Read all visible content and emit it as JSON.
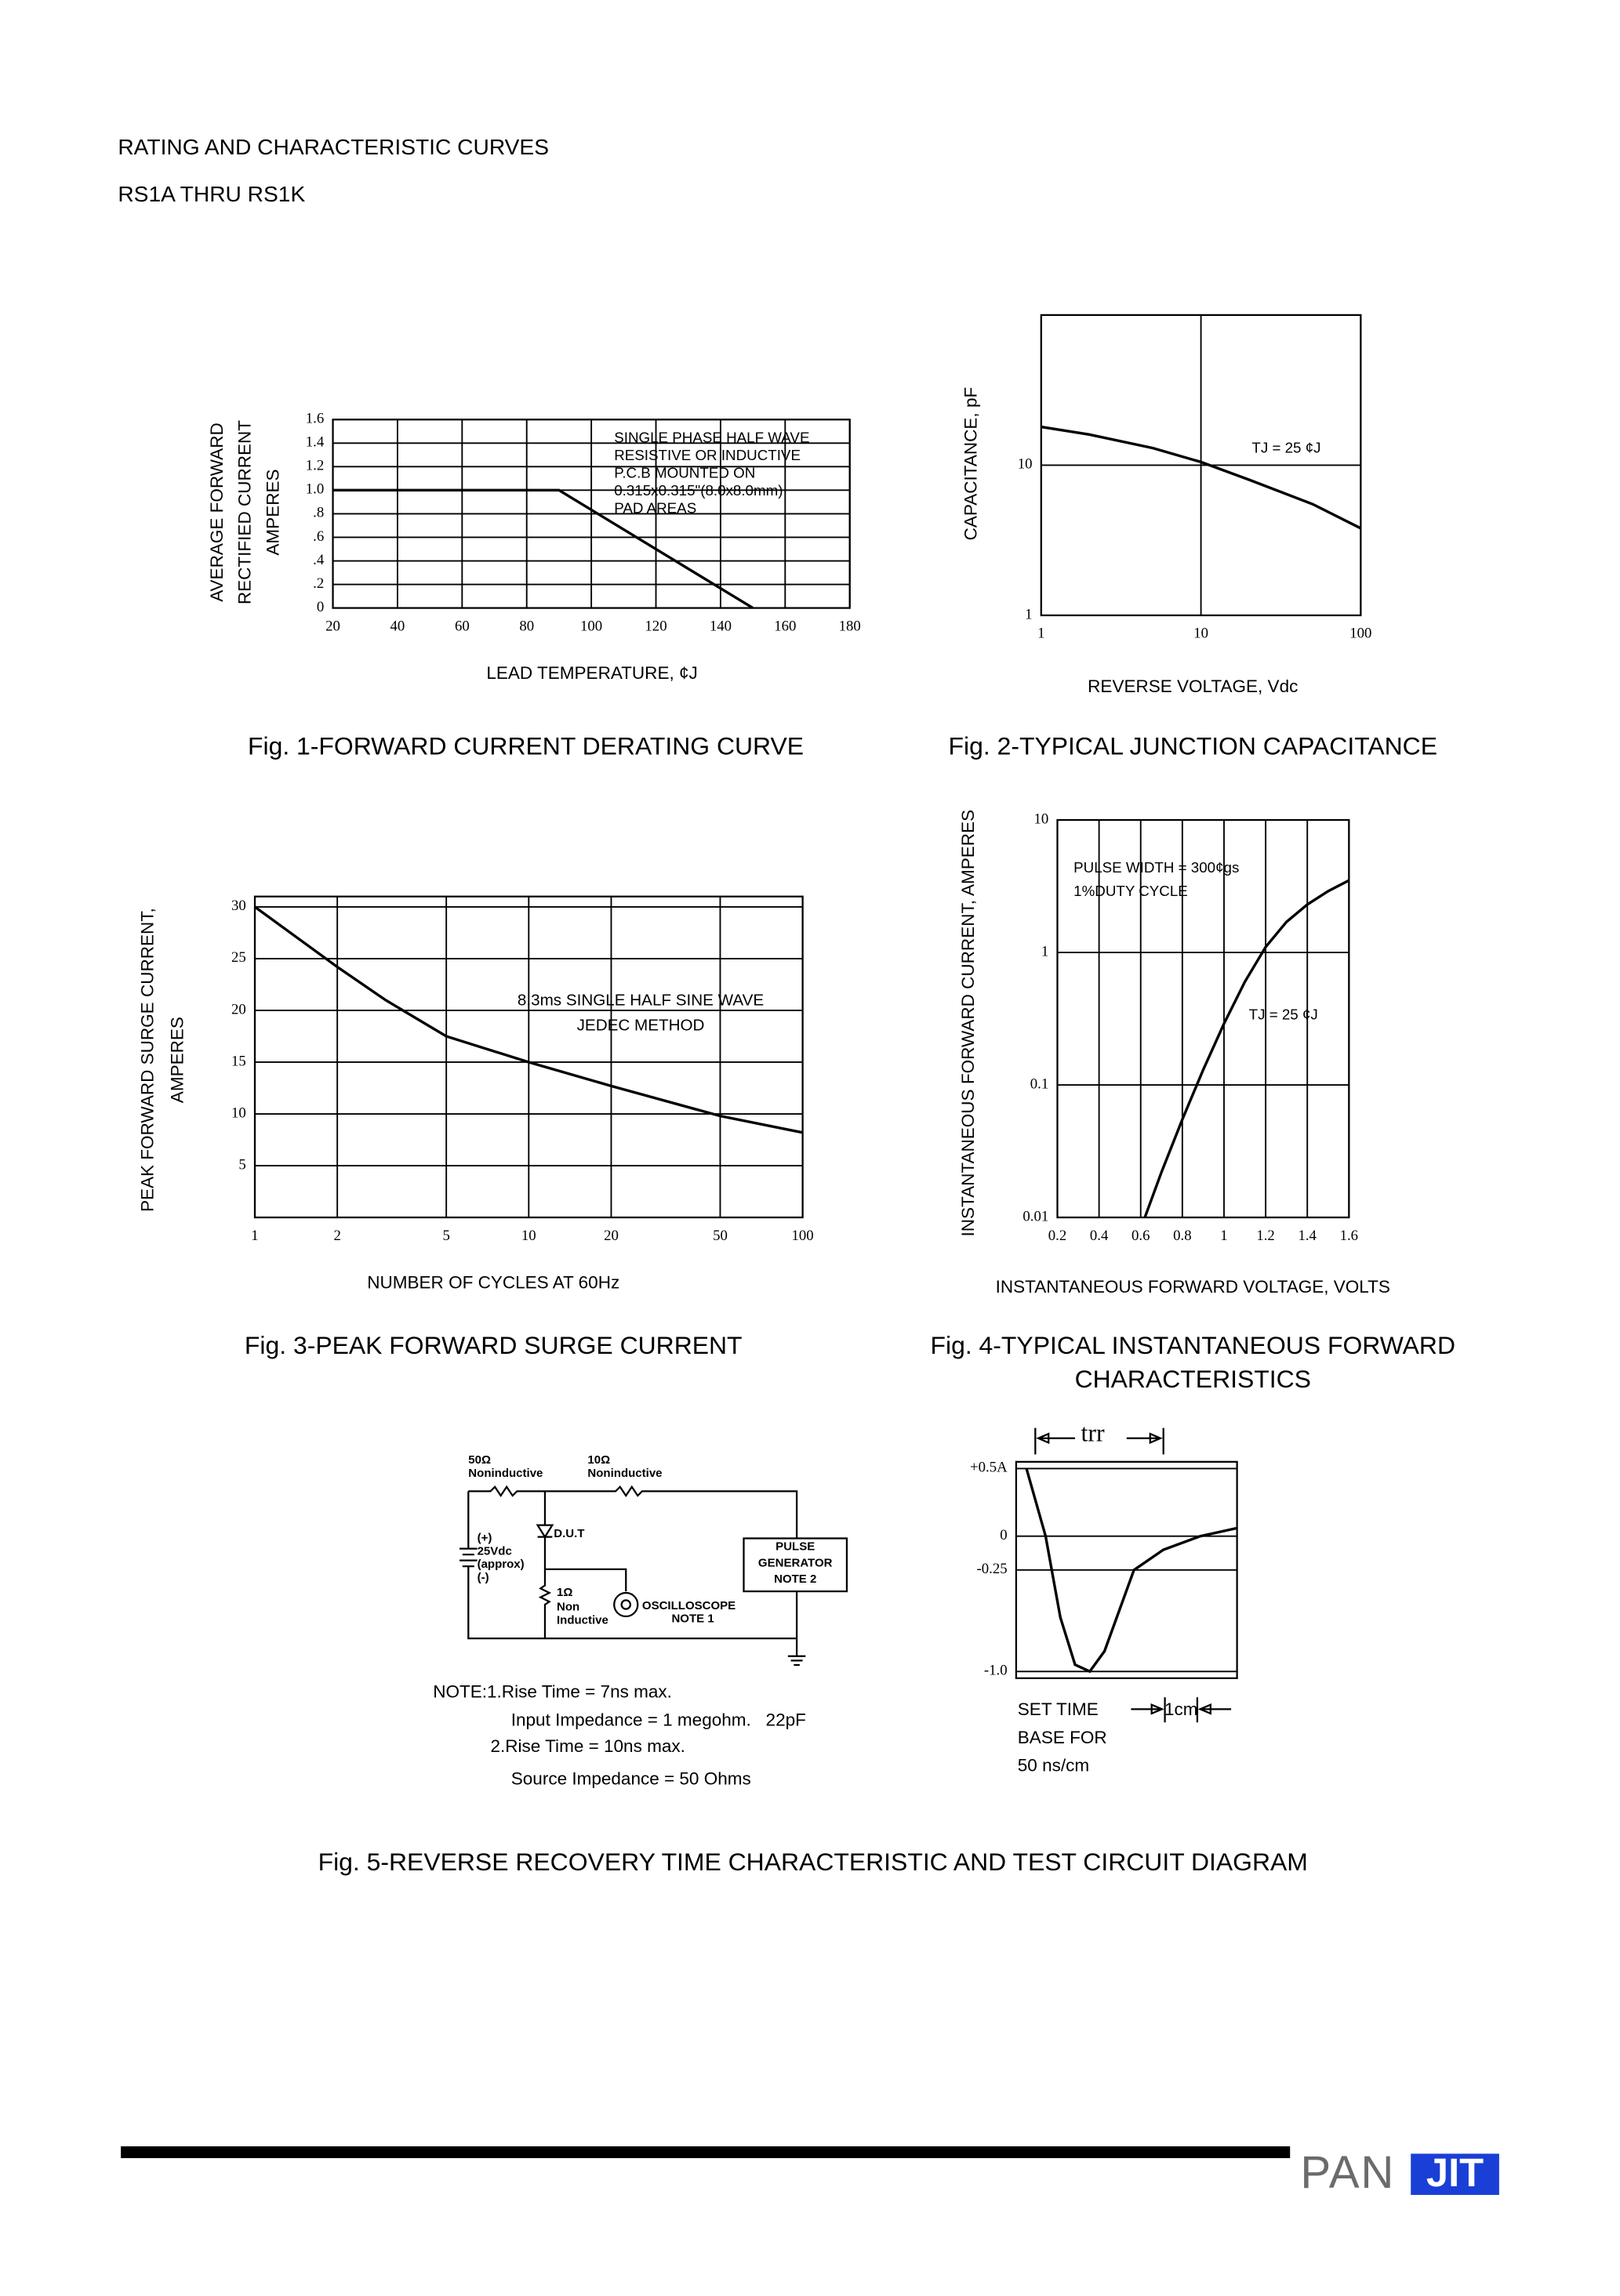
{
  "header": {
    "title": "RATING AND CHARACTERISTIC CURVES",
    "subtitle": "RS1A THRU RS1K"
  },
  "chart_data": [
    {
      "type": "line",
      "title": "Fig. 1-FORWARD CURRENT DERATING CURVE",
      "xlabel": "LEAD TEMPERATURE, ¢J",
      "ylabel": [
        "AVERAGE FORWARD",
        "RECTIFIED CURRENT",
        "AMPERES"
      ],
      "x": [
        20,
        90,
        150
      ],
      "values": [
        1,
        1,
        0
      ],
      "color": "#000000",
      "xlim": [
        20,
        180
      ],
      "xticks": [
        20,
        40,
        60,
        80,
        100,
        120,
        140,
        160,
        180
      ],
      "ylim": [
        0,
        1.6
      ],
      "yticks": [
        0,
        {
          "value": 0.2,
          "label": ".2"
        },
        {
          "value": 0.4,
          "label": ".4"
        },
        {
          "value": 0.6,
          "label": ".6"
        },
        {
          "value": 0.8,
          "label": ".8"
        },
        {
          "value": 1,
          "label": "1.0"
        },
        1.2,
        1.4,
        1.6
      ],
      "grid": true,
      "annotations": [
        "SINGLE PHASE HALF WAVE",
        "RESISTIVE OR INDUCTIVE",
        "P.C.B MOUNTED ON",
        "0.315x0.315\"(8.0x8.0mm)",
        "PAD AREAS"
      ]
    },
    {
      "type": "line",
      "title": "Fig. 2-TYPICAL JUNCTION CAPACITANCE",
      "xlabel": "REVERSE VOLTAGE, Vdc",
      "ylabel": [
        "CAPACITANCE, pF"
      ],
      "x": [
        1,
        2,
        5,
        10,
        20,
        50,
        100
      ],
      "values": [
        18,
        16,
        13,
        10.5,
        8,
        5.5,
        3.8
      ],
      "color": "#000000",
      "xscale": "log",
      "yscale": "log",
      "xlim": [
        1,
        100
      ],
      "xticks": [
        1,
        10,
        100
      ],
      "ylim": [
        1,
        100
      ],
      "yticks": [
        1,
        10
      ],
      "grid": true,
      "annotations": [
        "TJ = 25 ¢J"
      ]
    },
    {
      "type": "line",
      "title": "Fig. 3-PEAK FORWARD SURGE CURRENT",
      "xlabel": "NUMBER OF CYCLES AT 60Hz",
      "ylabel": [
        "PEAK FORWARD SURGE CURRENT,",
        "AMPERES"
      ],
      "x": [
        1,
        2,
        3,
        5,
        10,
        20,
        50,
        100
      ],
      "values": [
        30,
        24.2,
        21,
        17.5,
        15,
        12.7,
        9.8,
        8.2
      ],
      "color": "#000000",
      "xscale": "log",
      "xlim": [
        1,
        100
      ],
      "xticks": [
        1,
        2,
        5,
        10,
        20,
        50,
        100
      ],
      "ylim": [
        0,
        31
      ],
      "yticks": [
        5,
        10,
        15,
        20,
        25,
        30
      ],
      "grid": true,
      "annotations": [
        "8.3ms SINGLE HALF SINE WAVE",
        "JEDEC METHOD"
      ]
    },
    {
      "type": "line",
      "title": [
        "Fig. 4-TYPICAL INSTANTANEOUS FORWARD",
        "CHARACTERISTICS"
      ],
      "xlabel": "INSTANTANEOUS FORWARD VOLTAGE, VOLTS",
      "ylabel": [
        "INSTANTANEOUS FORWARD CURRENT, AMPERES"
      ],
      "x": [
        0.62,
        0.7,
        0.8,
        0.9,
        1.0,
        1.1,
        1.2,
        1.3,
        1.4,
        1.5,
        1.6
      ],
      "values": [
        0.01,
        0.022,
        0.055,
        0.13,
        0.29,
        0.6,
        1.1,
        1.7,
        2.3,
        2.9,
        3.5
      ],
      "color": "#000000",
      "yscale": "log",
      "xlim": [
        0.2,
        1.6
      ],
      "xticks": [
        0.2,
        0.4,
        0.6,
        0.8,
        1.0,
        1.2,
        1.4,
        1.6
      ],
      "ylim": [
        0.01,
        10
      ],
      "yticks": [
        0.01,
        0.1,
        1,
        10
      ],
      "grid": true,
      "annotations": [
        "PULSE WIDTH = 300¢gs",
        "1%DUTY CYCLE",
        "TJ = 25 ¢J"
      ]
    },
    {
      "type": "line",
      "title": "Fig. 5-REVERSE RECOVERY TIME CHARACTERISTIC AND TEST CIRCUIT DIAGRAM",
      "x": [
        0.28,
        0.8,
        1.2,
        1.6,
        2.0,
        2.4,
        2.8,
        3.2,
        4.0,
        5.0,
        6.0
      ],
      "values": [
        0.5,
        0,
        -0.6,
        -0.95,
        -1.0,
        -0.85,
        -0.55,
        -0.25,
        -0.1,
        0,
        0.06
      ],
      "color": "#000000",
      "xlim": [
        0,
        6
      ],
      "ylim": [
        -1.05,
        0.55
      ],
      "yticks": [
        {
          "value": 0.5,
          "label": "+0.5A"
        },
        0,
        -0.25,
        {
          "value": -1,
          "label": "-1.0"
        }
      ],
      "grid": true,
      "annotations": [
        "trr",
        "SET TIME",
        "BASE FOR",
        "50 ns/cm",
        "1cm"
      ]
    }
  ],
  "circuit": {
    "r1": "50Ω",
    "r1_type": "Noninductive",
    "r2": "10Ω",
    "r2_type": "Noninductive",
    "bat_plus": "(+)",
    "bat_v": "25Vdc",
    "bat_approx": "(approx)",
    "bat_minus": "(-)",
    "dut": "D.U.T",
    "r3": "1Ω",
    "r3_type1": "Non",
    "r3_type2": "Inductive",
    "scope": "OSCILLOSCOPE",
    "scope_note": "NOTE 1",
    "gen1": "PULSE",
    "gen2": "GENERATOR",
    "gen_note": "NOTE 2",
    "notes": [
      "NOTE:1.Rise Time = 7ns max.",
      "Input Impedance = 1 megohm.   22pF",
      "2.Rise Time = 10ns max.",
      "Source Impedance = 50 Ohms"
    ]
  },
  "footer": {
    "logo_left": "PAN",
    "logo_right": "JIT"
  }
}
